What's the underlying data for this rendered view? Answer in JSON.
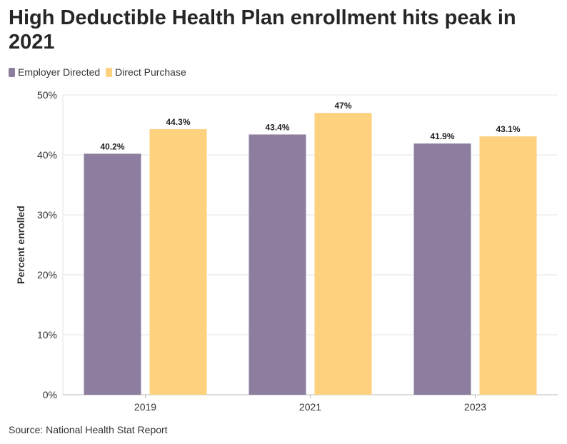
{
  "title": "High Deductible Health Plan enrollment hits peak in 2021",
  "source": "Source: National Health Stat Report",
  "colors": {
    "employer": "#8d7ea0",
    "direct": "#fdd17e",
    "grid": "#e6e6e6",
    "axis": "#bbbbbb"
  },
  "chart_data": {
    "type": "bar",
    "categories": [
      "2019",
      "2021",
      "2023"
    ],
    "series": [
      {
        "name": "Employer Directed",
        "values": [
          40.2,
          43.4,
          41.9
        ],
        "labels": [
          "40.2%",
          "43.4%",
          "41.9%"
        ]
      },
      {
        "name": "Direct Purchase",
        "values": [
          44.3,
          47,
          43.1
        ],
        "labels": [
          "44.3%",
          "47%",
          "43.1%"
        ]
      }
    ],
    "ylabel": "Percent enrolled",
    "xlabel": "",
    "ylim": [
      0,
      50
    ],
    "yticks": [
      0,
      10,
      20,
      30,
      40,
      50
    ],
    "ytick_labels": [
      "0%",
      "10%",
      "20%",
      "30%",
      "40%",
      "50%"
    ],
    "grid": true,
    "legend": "top-left"
  }
}
